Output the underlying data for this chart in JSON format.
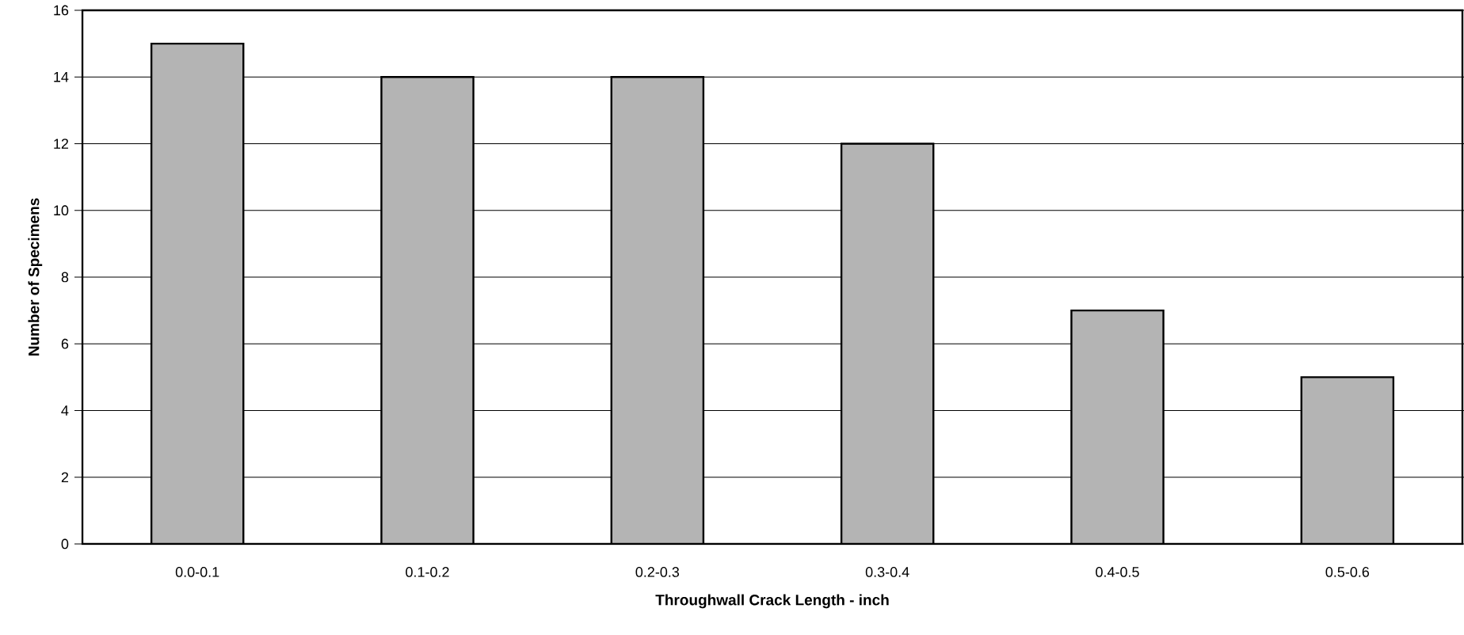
{
  "chart_data": {
    "type": "bar",
    "xlabel": "Throughwall Crack Length - inch",
    "ylabel": "Number of Specimens",
    "categories": [
      "0.0-0.1",
      "0.1-0.2",
      "0.2-0.3",
      "0.3-0.4",
      "0.4-0.5",
      "0.5-0.6"
    ],
    "values": [
      15,
      14,
      14,
      12,
      7,
      5
    ],
    "color": "#b4b4b4",
    "ylim": [
      0,
      16
    ],
    "yticks": [
      0,
      2,
      4,
      6,
      8,
      10,
      12,
      14,
      16
    ],
    "grid": "y"
  }
}
